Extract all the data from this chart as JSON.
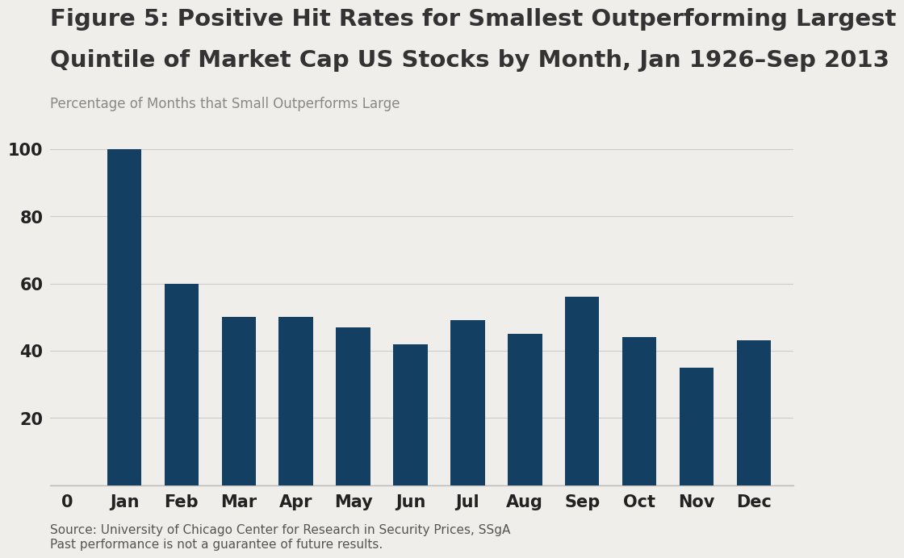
{
  "title_line1": "Figure 5: Positive Hit Rates for Smallest Outperforming Largest",
  "title_line2": "Quintile of Market Cap US Stocks by Month, Jan 1926–Sep 2013",
  "subtitle": "Percentage of Months that Small Outperforms Large",
  "categories": [
    "Jan",
    "Feb",
    "Mar",
    "Apr",
    "May",
    "Jun",
    "Jul",
    "Aug",
    "Sep",
    "Oct",
    "Nov",
    "Dec"
  ],
  "values": [
    100,
    60,
    50,
    50,
    47,
    42,
    49,
    45,
    56,
    44,
    35,
    43
  ],
  "bar_color": "#133f63",
  "background_color": "#f0eeea",
  "ytick_values": [
    20,
    40,
    60,
    80,
    100
  ],
  "ytick_labels": [
    "20",
    "40",
    "60",
    "80",
    "100"
  ],
  "ylim": [
    0,
    107
  ],
  "source_line1": "Source: University of Chicago Center for Research in Security Prices, SSgA",
  "source_line2": "Past performance is not a guarantee of future results.",
  "title_fontsize": 21,
  "subtitle_fontsize": 12,
  "tick_fontsize": 15,
  "source_fontsize": 11,
  "title_color": "#333333",
  "subtitle_color": "#888888",
  "tick_color": "#222222",
  "source_color": "#555555",
  "grid_color": "#cccccc",
  "spine_color": "#bbbbbb"
}
